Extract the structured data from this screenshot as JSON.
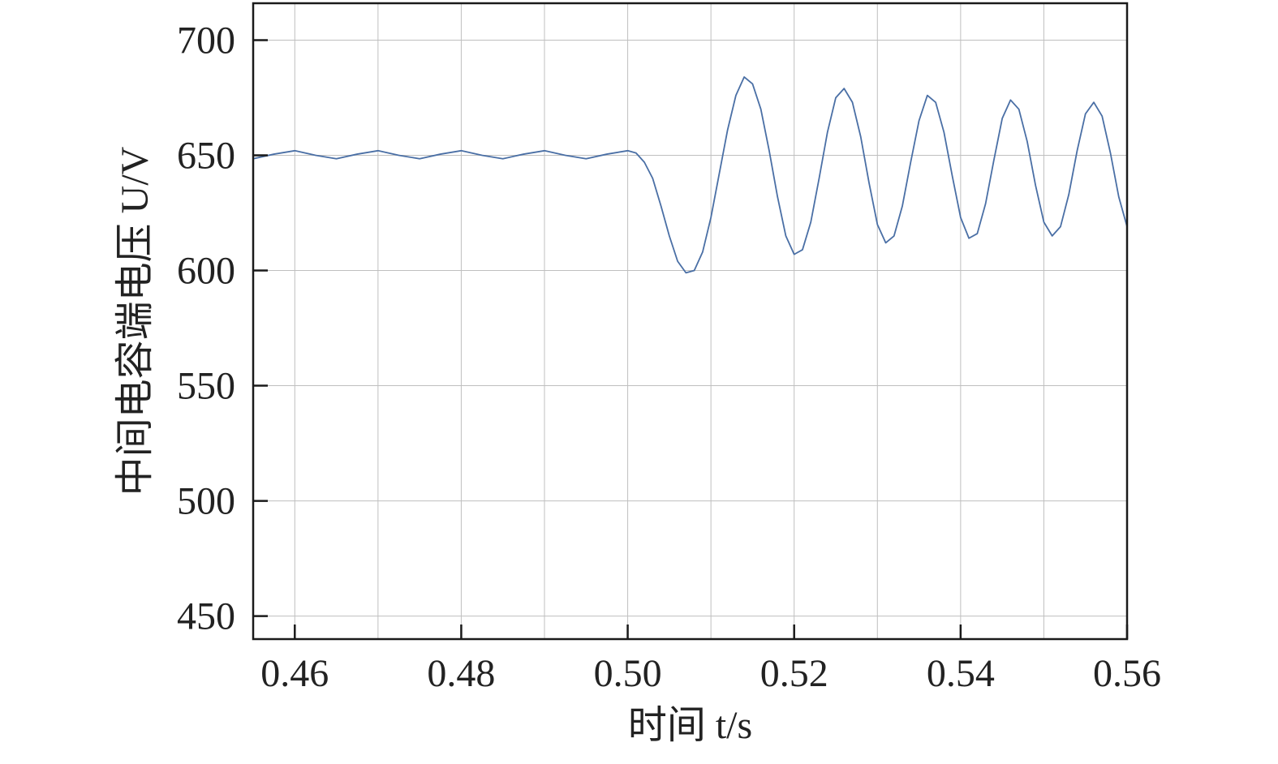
{
  "chart_data": {
    "type": "line",
    "title": "",
    "xlabel": "时间 t/s",
    "ylabel": "中间电容端电压 U/V",
    "xlim": [
      0.455,
      0.56
    ],
    "ylim": [
      440,
      716
    ],
    "x_ticks": [
      0.46,
      0.48,
      0.5,
      0.52,
      0.54,
      0.56
    ],
    "x_tick_labels": [
      "0.46",
      "0.48",
      "0.50",
      "0.52",
      "0.54",
      "0.56"
    ],
    "x_grid": [
      0.46,
      0.47,
      0.48,
      0.49,
      0.5,
      0.51,
      0.52,
      0.53,
      0.54,
      0.55,
      0.56
    ],
    "y_ticks": [
      450,
      500,
      550,
      600,
      650,
      700
    ],
    "y_tick_labels": [
      "450",
      "500",
      "550",
      "600",
      "650",
      "700"
    ],
    "grid": true,
    "series": [
      {
        "color": "#4a6fa5",
        "x": [
          0.455,
          0.4575,
          0.46,
          0.4625,
          0.465,
          0.4675,
          0.47,
          0.4725,
          0.475,
          0.4775,
          0.48,
          0.4825,
          0.485,
          0.4875,
          0.49,
          0.4925,
          0.495,
          0.4975,
          0.5,
          0.501,
          0.502,
          0.503,
          0.504,
          0.505,
          0.506,
          0.507,
          0.508,
          0.509,
          0.51,
          0.511,
          0.512,
          0.513,
          0.514,
          0.515,
          0.516,
          0.517,
          0.518,
          0.519,
          0.52,
          0.521,
          0.522,
          0.523,
          0.524,
          0.525,
          0.526,
          0.527,
          0.528,
          0.529,
          0.53,
          0.531,
          0.532,
          0.533,
          0.534,
          0.535,
          0.536,
          0.537,
          0.538,
          0.539,
          0.54,
          0.541,
          0.542,
          0.543,
          0.544,
          0.545,
          0.546,
          0.547,
          0.548,
          0.549,
          0.55,
          0.551,
          0.552,
          0.553,
          0.554,
          0.555,
          0.556,
          0.557,
          0.558,
          0.559,
          0.56
        ],
        "y": [
          648.5,
          650.5,
          652,
          650,
          648.5,
          650.5,
          652,
          650,
          648.5,
          650.5,
          652,
          650,
          648.5,
          650.5,
          652,
          650,
          648.5,
          650.5,
          652,
          651,
          647,
          640,
          628,
          615,
          604,
          599,
          600,
          608,
          623,
          642,
          661,
          676,
          684,
          681,
          670,
          652,
          632,
          615,
          607,
          609,
          621,
          640,
          660,
          675,
          679,
          673,
          658,
          638,
          620,
          612,
          615,
          628,
          647,
          665,
          676,
          673,
          660,
          641,
          623,
          614,
          616,
          629,
          648,
          666,
          674,
          670,
          656,
          637,
          621,
          615,
          619,
          633,
          652,
          668,
          673,
          667,
          651,
          632,
          619
        ]
      }
    ]
  }
}
